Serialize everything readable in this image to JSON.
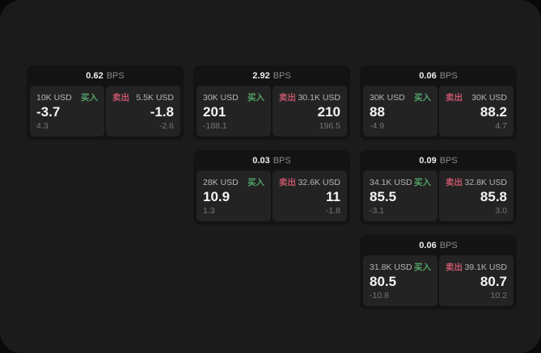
{
  "labels": {
    "buy": "买入",
    "sell": "卖出",
    "bps_unit": "BPS"
  },
  "colors": {
    "buy_accent": "#53a368",
    "sell_accent": "#c4556a",
    "surface": "#1b1b1b",
    "card_bg": "#131313",
    "panel_bg": "#232323"
  },
  "cards": [
    {
      "bps": "0.62",
      "buy": {
        "amount": "10K USD",
        "value": "-3.7",
        "sub": "4.3"
      },
      "sell": {
        "amount": "5.5K USD",
        "value": "-1.8",
        "sub": "-2.6"
      }
    },
    {
      "bps": "2.92",
      "buy": {
        "amount": "30K USD",
        "value": "201",
        "sub": "-188.1"
      },
      "sell": {
        "amount": "30.1K USD",
        "value": "210",
        "sub": "196.5"
      }
    },
    {
      "bps": "0.06",
      "buy": {
        "amount": "30K USD",
        "value": "88",
        "sub": "-4.9"
      },
      "sell": {
        "amount": "30K USD",
        "value": "88.2",
        "sub": "4.7"
      }
    },
    {
      "bps": "0.03",
      "buy": {
        "amount": "28K USD",
        "value": "10.9",
        "sub": "1.3"
      },
      "sell": {
        "amount": "32.6K USD",
        "value": "11",
        "sub": "-1.8"
      }
    },
    {
      "bps": "0.09",
      "buy": {
        "amount": "34.1K USD",
        "value": "85.5",
        "sub": "-3.1"
      },
      "sell": {
        "amount": "32.8K USD",
        "value": "85.8",
        "sub": "3.0"
      }
    },
    {
      "bps": "0.06",
      "buy": {
        "amount": "31.8K USD",
        "value": "80.5",
        "sub": "-10.8"
      },
      "sell": {
        "amount": "39.1K USD",
        "value": "80.7",
        "sub": "10.2"
      }
    }
  ]
}
